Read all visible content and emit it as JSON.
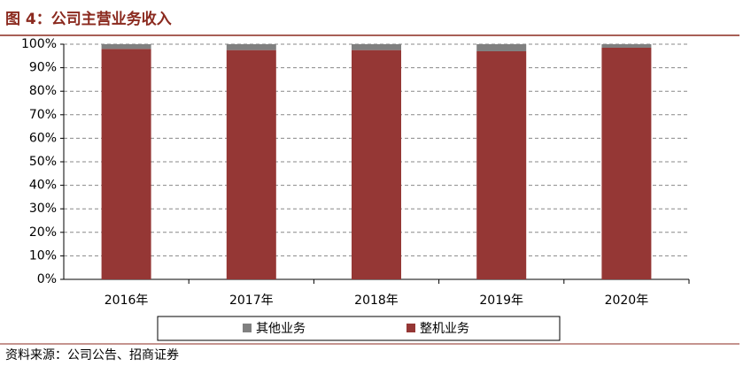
{
  "chart_data": {
    "type": "stacked_bar",
    "title": "图 4：公司主营业务收入",
    "source": "资料来源：公司公告、招商证券",
    "categories": [
      "2016年",
      "2017年",
      "2018年",
      "2019年",
      "2020年"
    ],
    "series": [
      {
        "name": "整机业务",
        "color": "#953735",
        "values": [
          98,
          97.5,
          97.5,
          97,
          98.5
        ]
      },
      {
        "name": "其他业务",
        "color": "#808080",
        "values": [
          2,
          2.5,
          2.5,
          3,
          1.5
        ]
      }
    ],
    "ylim": [
      0,
      100
    ],
    "yticks": [
      {
        "value": 0,
        "label": "0%"
      },
      {
        "value": 10,
        "label": "10%"
      },
      {
        "value": 20,
        "label": "20%"
      },
      {
        "value": 30,
        "label": "30%"
      },
      {
        "value": 40,
        "label": "40%"
      },
      {
        "value": 50,
        "label": "50%"
      },
      {
        "value": 60,
        "label": "60%"
      },
      {
        "value": 70,
        "label": "70%"
      },
      {
        "value": 80,
        "label": "80%"
      },
      {
        "value": 90,
        "label": "90%"
      },
      {
        "value": 100,
        "label": "100%"
      }
    ],
    "grid": true
  }
}
